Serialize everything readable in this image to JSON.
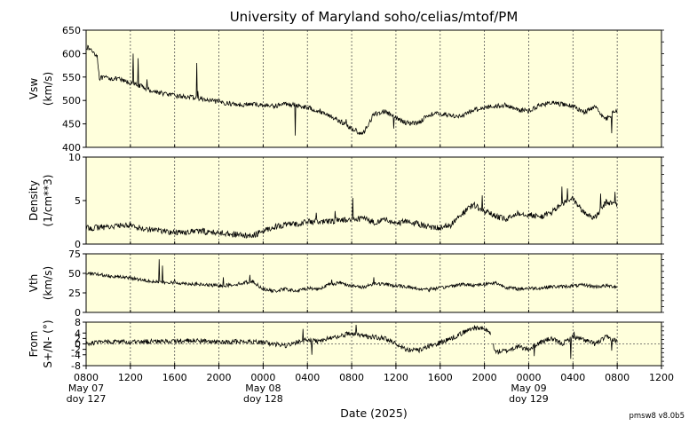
{
  "title": "University of Maryland  soho/celias/mtof/PM",
  "x_axis": {
    "label": "Date (2025)",
    "range_hours": [
      0,
      52
    ],
    "tick_hours": [
      0,
      4,
      8,
      12,
      16,
      20,
      24,
      28,
      32,
      36,
      40,
      44,
      48,
      52
    ],
    "tick_labels": [
      "0800",
      "1200",
      "1600",
      "2000",
      "0000",
      "0400",
      "0800",
      "1200",
      "1600",
      "2000",
      "0000",
      "0400",
      "0800",
      "1200"
    ],
    "day_labels": [
      {
        "at_hour": 0,
        "date": "May 07",
        "doy": "doy 127"
      },
      {
        "at_hour": 16,
        "date": "May 08",
        "doy": "doy 128"
      },
      {
        "at_hour": 40,
        "date": "May 09",
        "doy": "doy 129"
      }
    ]
  },
  "version": "pmsw8 v8.0b5",
  "colors": {
    "background": "#ffffdc",
    "line": "#000000",
    "grid": "#555555"
  },
  "chart_data": [
    {
      "type": "line",
      "ylabel": [
        "Vsw",
        "(km/s)"
      ],
      "ylim": [
        400,
        650
      ],
      "yticks": [
        400,
        450,
        500,
        550,
        600,
        650
      ],
      "noise": 5,
      "x": [
        0,
        0.6,
        1.0,
        1.2,
        2,
        3,
        4,
        5,
        6,
        7,
        8,
        9,
        10,
        11,
        12,
        13,
        14,
        15,
        16,
        17,
        18,
        19,
        20,
        21,
        22,
        23,
        24,
        25,
        26,
        27,
        28,
        29,
        30,
        31,
        32,
        33,
        34,
        35,
        36,
        37,
        38,
        39,
        40,
        41,
        42,
        43,
        44,
        45,
        46,
        47,
        48
      ],
      "values": [
        615,
        605,
        595,
        548,
        548,
        545,
        537,
        530,
        520,
        515,
        510,
        508,
        505,
        500,
        497,
        493,
        491,
        492,
        490,
        488,
        493,
        490,
        485,
        478,
        468,
        455,
        440,
        428,
        470,
        477,
        462,
        452,
        452,
        470,
        472,
        468,
        466,
        480,
        485,
        488,
        490,
        480,
        478,
        490,
        495,
        492,
        488,
        475,
        485,
        460,
        480
      ],
      "spikes": [
        [
          4.25,
          600
        ],
        [
          4.7,
          590
        ],
        [
          5.5,
          545
        ],
        [
          10,
          580
        ],
        [
          10.1,
          520
        ],
        [
          18.9,
          425
        ],
        [
          22,
          470
        ],
        [
          23.5,
          460
        ],
        [
          27.8,
          440
        ],
        [
          33,
          465
        ],
        [
          47.5,
          430
        ]
      ]
    },
    {
      "type": "line",
      "ylabel": [
        "Density",
        "(1/cm**3)"
      ],
      "ylim": [
        0,
        10
      ],
      "yticks": [
        0,
        5,
        10
      ],
      "noise": 0.35,
      "x": [
        0,
        2,
        4,
        5,
        6,
        7,
        8,
        9,
        10,
        11,
        12,
        13,
        14,
        15,
        16,
        17,
        18,
        19,
        20,
        21,
        22,
        23,
        24,
        25,
        26,
        27,
        28,
        29,
        30,
        31,
        32,
        33,
        34,
        35,
        36,
        37,
        38,
        39,
        40,
        41,
        42,
        43,
        44,
        45,
        46,
        47,
        48
      ],
      "values": [
        1.8,
        2.0,
        2.2,
        1.8,
        1.7,
        1.5,
        1.3,
        1.4,
        1.5,
        1.4,
        1.3,
        1.2,
        1.0,
        0.9,
        1.5,
        2.0,
        2.2,
        2.3,
        2.6,
        2.5,
        2.6,
        2.8,
        2.7,
        3.0,
        2.5,
        2.8,
        2.4,
        2.6,
        2.3,
        2.0,
        1.9,
        2.2,
        3.5,
        4.5,
        3.8,
        3.2,
        2.8,
        3.6,
        3.4,
        3.1,
        3.6,
        4.6,
        5.2,
        3.6,
        3.0,
        4.8,
        4.6
      ],
      "spikes": [
        [
          14.5,
          0.7
        ],
        [
          20.8,
          3.6
        ],
        [
          22.5,
          3.8
        ],
        [
          24.1,
          5.3
        ],
        [
          35.8,
          5.6
        ],
        [
          43.0,
          6.6
        ],
        [
          43.5,
          6.4
        ],
        [
          46.5,
          5.8
        ],
        [
          47.8,
          6.0
        ]
      ]
    },
    {
      "type": "line",
      "ylabel": [
        "Vth",
        "(km/s)"
      ],
      "ylim": [
        0,
        75
      ],
      "yticks": [
        0,
        25,
        50,
        75
      ],
      "noise": 2.2,
      "x": [
        0,
        2,
        4,
        5,
        6,
        7,
        8,
        9,
        10,
        11,
        12,
        13,
        14,
        15,
        16,
        17,
        18,
        19,
        20,
        21,
        22,
        23,
        24,
        25,
        26,
        27,
        28,
        29,
        30,
        31,
        32,
        33,
        34,
        35,
        36,
        37,
        38,
        39,
        40,
        41,
        42,
        43,
        44,
        45,
        46,
        47,
        48
      ],
      "values": [
        50,
        47,
        44,
        42,
        40,
        38,
        38,
        37,
        36,
        35,
        34,
        35,
        37,
        40,
        30,
        27,
        30,
        27,
        31,
        30,
        36,
        38,
        34,
        32,
        37,
        36,
        34,
        33,
        30,
        30,
        31,
        34,
        36,
        35,
        36,
        38,
        32,
        30,
        31,
        31,
        33,
        33,
        34,
        35,
        33,
        34,
        33
      ],
      "spikes": [
        [
          6.6,
          68
        ],
        [
          6.9,
          60
        ],
        [
          8.0,
          42
        ],
        [
          12.4,
          45
        ],
        [
          14.8,
          48
        ],
        [
          22.2,
          42
        ],
        [
          26,
          45
        ],
        [
          31,
          26
        ]
      ]
    },
    {
      "type": "line",
      "ylabel": [
        "From",
        "S+/N- (°)"
      ],
      "ylim": [
        -8,
        8
      ],
      "yticks": [
        -8,
        -4,
        -2,
        0,
        2,
        4,
        8
      ],
      "zero_line": true,
      "noise": 0.9,
      "x": [
        0,
        2,
        4,
        6,
        8,
        10,
        12,
        14,
        15,
        16,
        17,
        18,
        19,
        20,
        21,
        22,
        23,
        24,
        25,
        26,
        27,
        28,
        29,
        30,
        31,
        32,
        33,
        34,
        35,
        36,
        36.5,
        37,
        38,
        39,
        40,
        41,
        42,
        43,
        44,
        45,
        46,
        47,
        48
      ],
      "values": [
        0.0,
        1.0,
        0.5,
        1.0,
        1.0,
        1.2,
        0.5,
        1.0,
        0.8,
        0.5,
        0.0,
        -0.8,
        0.5,
        1.5,
        1.0,
        2.0,
        3.0,
        4.0,
        3.0,
        2.5,
        2.0,
        0.0,
        -2.0,
        -2.5,
        -1.0,
        0.5,
        2.0,
        4.0,
        6.0,
        5.5,
        4.0,
        -3.0,
        -2.5,
        -1.0,
        -2.0,
        0.5,
        2.0,
        0.0,
        2.5,
        1.5,
        0.0,
        2.5,
        1.0
      ],
      "gaps": [
        [
          36.6,
          36.8
        ]
      ],
      "spikes": [
        [
          19.6,
          5.5
        ],
        [
          20.4,
          -4.0
        ],
        [
          24.4,
          7.0
        ],
        [
          40.5,
          -4.5
        ],
        [
          43.8,
          -5.5
        ],
        [
          44.1,
          4.5
        ],
        [
          47.5,
          -2.5
        ]
      ]
    }
  ]
}
